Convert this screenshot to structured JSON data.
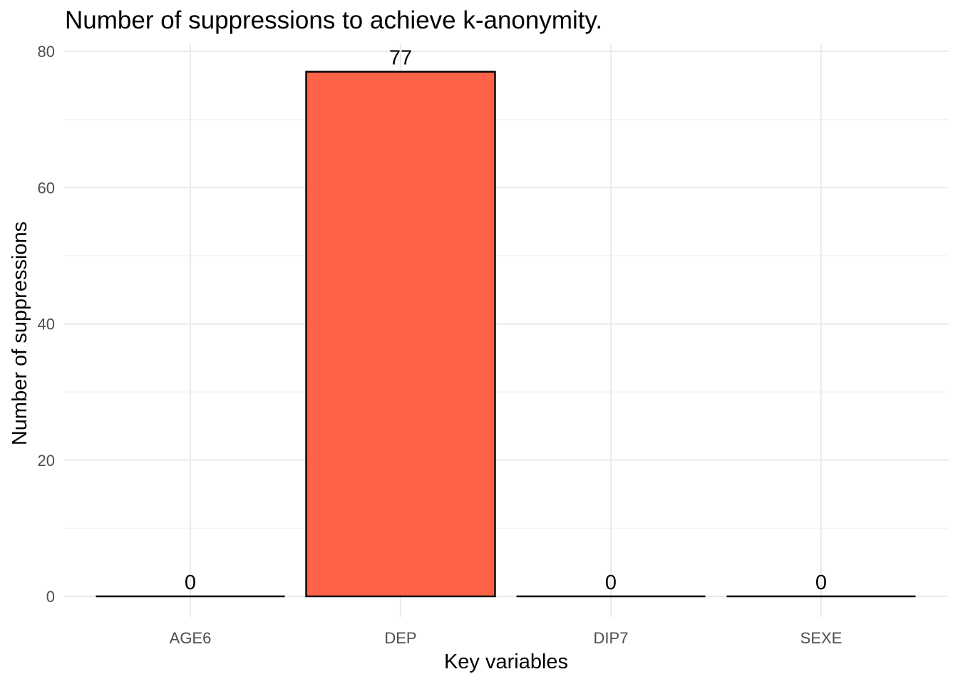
{
  "chart_data": {
    "type": "bar",
    "title": "Number of suppressions to achieve k-anonymity.",
    "xlabel": "Key variables",
    "ylabel": "Number of suppressions",
    "categories": [
      "AGE6",
      "DEP",
      "DIP7",
      "SEXE"
    ],
    "values": [
      0,
      77,
      0,
      0
    ],
    "data_labels": [
      "0",
      "77",
      "0",
      "0"
    ],
    "ylim": [
      0,
      80
    ],
    "yticks": [
      0,
      20,
      40,
      60,
      80
    ],
    "grid": true,
    "legend": "none",
    "colors": {
      "bar_fill": "#FF6347",
      "bar_stroke": "#000000",
      "grid": "#EBEBEB",
      "tick_text": "#4D4D4D"
    }
  }
}
